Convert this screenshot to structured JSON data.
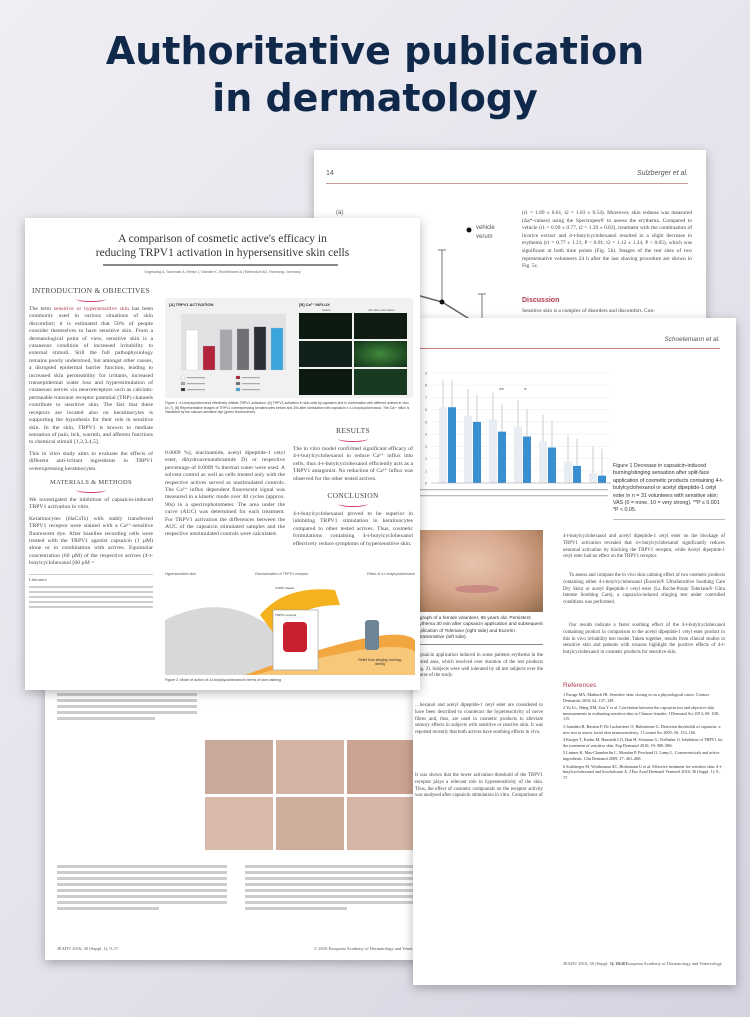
{
  "headline": {
    "line1": "Authoritative publication",
    "line2": "in dermatology"
  },
  "paper_sulzberger": {
    "page": "14",
    "running_head": "Sulzberger et al.",
    "panel": "(a)",
    "legend": [
      "vehicle",
      "verum"
    ],
    "body": "(t1 = 1.89 ± 0.61, t2 = 1.83 ± 0.54). Moreover, skin redness was measured (Δa*-values) using the Spectropen® to assess the erythema. Compared to vehicle (t1 = 0.99 ± 0.77, t2 = 1.39 ± 0.83), treatment with the combination of licorice extract and 4-t-butylcyclohexanol resulted in a slight decrease in erythema (t1 = 0.77 ± 1.21, P < 0.01; t2 = 1.12 ± 1.24, P < 0.05), which was significant at both time points (Fig. 5b). Images of the test sites of two representative volunteers 24 h after the last shaving procedure are shown in Fig. 5c.",
    "discussion_heading": "Discussion",
    "discussion": "Sensitive skin is a complex of disorders and discomfort. Con-"
  },
  "poster": {
    "title_line1": "A comparison of cosmetic active's efficacy in",
    "title_line2": "reducing TRPV1 activation in hypersensitive skin cells",
    "authors": "Vogelsang A, Sammain A, Weise J, Wamke K, Wohlfrimann A | Beiersdorf AG, Hamburg, Germany",
    "intro_heading": "INTRODUCTION & OBJECTIVES",
    "intro_lead": "The term ",
    "intro_highlight": "sensitive or hypersensitive skin",
    "intro_text": " has been commonly used in various situations of skin discomfort; it is estimated that 50% of people consider themselves to have sensitive skin. From a dermatological point of view, sensitive skin is a cutaneous condition of increased irritability to external stimuli. Still the full pathophysiology remains poorly understood, but amongst other causes, a disrupted epidermal barrier function, leading to increased skin permeability for irritants, increased transepidermal water loss and hyperstimulation of cutaneous nerves via neuroreceptors such as calcium-permeable transient receptor potential (TRP) channels contribute to sensitive skin. The fact that these receptors are located also on keratinocytes is supporting the hypothesis for their role in sensitive skin. In the skin, TRPV1 is known to mediate sensation of pain, itch, warmth, and afferent functions to chemical stimuli [1,2,3,4,5].",
    "aim": "This in vitro study aims to evaluate the effects of different anti-irritant ingredients in TRPV1 overexpressing keratinocytes.",
    "methods_heading": "MATERIALS & METHODS",
    "methods_1": "We investigated the inhibition of capsaicin-induced TRPV1 activation in vitro.",
    "methods_2": "Keratinocytes (HaCaTs) with stably transfected TRPV1 receptor were stained with a Ca²⁺-sensitive fluorescent dye. After baseline recording cells were treated with the TRPV1 agonist capsaicin (1 µM) alone or in combination with actives. Equimolar concentration (60 µM) of the respective actives (4-t-butylcyclohexanol [60 µM =",
    "methods_col2": "0.0009 %], niacinamide, acetyl dipeptide-1 cetyl ester, dihydroavenanthramide D) or respective percentage of 0.0009 % thermal water were used. A solvent control as well as cells treated only with the respective actives served as unstimulated controls. The Ca²⁺ influx dependent fluorescent signal was measured in a kinetic mode over 40 cycles (approx. 90s) in a spectrophotometer. The area under the curve (AUC) was determined for each treatment. For TRPV1 activation the differences between the AUC of the capsaicin stimulated samples and the respective unstimulated controls were calculated.",
    "results_heading": "RESULTS",
    "results": "The in vitro model confirmed significant efficacy of 4-t-butylcyclohexanol to reduce Ca²⁺ influx into cells, thus 4-t-butylcyclohexanol efficiently acts as a TRPV1 antagonist. No reduction of Ca²⁺ influx was observed for the other tested actives.",
    "conclusion_heading": "CONCLUSION",
    "conclusion": "4-t-butylcyclohexanol proved to be superior in inhibiting TRPV1 stimulation in keratinocytes compared to other tested actives. Thus, cosmetic formulations containing 4-t-butylcyclohexanol effectively reduce symptoms of hypersensitive skin.",
    "fig_a_title": "[A] TRPV1 ACTIVATION",
    "fig_b_title": "[B] Ca²⁺ INFLUX",
    "fig_b_cols": [
      "before",
      "20s after stimulation"
    ],
    "fig1_caption": "Figure 1: 4-t-butylcyclohexanol effectively inhibits TRPV1 activation. [A] TRPV1 activation in skin cells by capsaicin and in combination with different actives in vitro (n=7). [B] Representative images of TRPV1 overexpressing keratinocytes before and 20s after stimulation with capsaicin ± 4-t-butylcyclohexanol. The Ca²⁺ influx is visualized by the calcium-sensitive dye (green fluorescence).",
    "fig2_labels": [
      "Hypersensitive skin",
      "Overactivation of TRPV1 receptor",
      "Effect of 4-t-butylcyclohexanol"
    ],
    "fig2_annotations": [
      "CGRP release",
      "TRPV1 receptor",
      "Relief from stinging, burning, itching"
    ],
    "fig2_caption": "Figure 2: Mode of action of 4-t-butylcyclohexanol in terms of skin calming",
    "literature_heading": "Literature"
  },
  "chart_data": [
    {
      "type": "bar",
      "title": "[A] TRPV1 ACTIVATION",
      "ylim": [
        0,
        140
      ],
      "values": [
        100,
        60,
        101,
        103,
        108,
        105
      ],
      "colors": [
        "#ffffff",
        "#b0233a",
        "#a7a8ac",
        "#6e7075",
        "#2b2f38",
        "#3aa6dc"
      ]
    },
    {
      "type": "bar",
      "ylim": [
        0,
        9
      ],
      "yticks": [
        0,
        1,
        2,
        3,
        4,
        5,
        6,
        7,
        8,
        9
      ],
      "series": [
        {
          "values": [
            6.2,
            5.5,
            5.2,
            4.6,
            3.4,
            1.7,
            0.8
          ],
          "color": "#e8edf3"
        },
        {
          "values": [
            6.2,
            5.0,
            4.2,
            3.8,
            2.9,
            1.4,
            0.6
          ],
          "color": "#3a8fd0"
        }
      ],
      "significance": [
        "",
        "",
        "**",
        "*",
        "",
        "",
        ""
      ]
    }
  ],
  "paper_schoelemann": {
    "running_head": "Schoelemann et al.",
    "figure_caption": "Figure 1  Decrease in capsaicin-induced burning/stinging sensation after split-face application of cosmetic products containing 4-t-butylcyclohexanol or acetyl dipeptide-1 cetyl ester in n = 31 volunteers with sensitive skin; VAS (0 = none, 10 = very strong). **P ≤ 0.001 *P < 0.05.",
    "photo_caption": "…graph of a female volunteer, 65 years old. Persistent erythema 30 min after capsaicin application and subsequent application of Toleriane (right side) and Eucerin UltraSensitive (left side).",
    "left_text": "Capsaicin application induced in some patients erythema in the treated area, which resolved over duration of the test products (Fig. 2). Subjects were well tolerated by all test subjects over the course of the study.",
    "left_text2": "…hexanol and acetyl dipeptide-1 cetyl ester are considered to have been described to counteract the hyperreactivity of nerve fibres and, thus, are used in cosmetic products to alleviate sensory effects in subjects with sensitive or reactive skin. It was reported recently that both actives have soothing effects in vivo.",
    "left_text3": "It was shown that the lower activation threshold of the TRPV1 receptor plays a relevant role in hypersensitivity of the skin. Thus, the effect of cosmetic compounds on the receptor activity was analysed after capsaicin stimulation in vitro. Comparisons of",
    "right_text": "4-t-butylcyclohexanol and acetyl dipeptide-1 cetyl ester on the blockage of TRPV1 activation revealed that 4-t-butylcyclohexanol significantly reduces neuronal activation by blocking the TRPV1 receptor, while Acetyl dipeptide-1 cetyl ester had no effect on the TRPV1 receptor.",
    "right_text2": "To assess and compare the in vivo skin calming effect of two cosmetic products containing either 4-t-butylcyclohexanol (Eucerin® UltraSensitive Soothing Care Dry Skin) or acetyl dipeptide-1 cetyl ester (La Roche-Posay Toleriane® Ultra Intense Soothing Care), a capsaicin-induced stinging test under controlled conditions was performed.",
    "right_text3": "Our results indicate a faster soothing effect of the 4-t-butylcyclohexanol containing product in comparison to the acetyl dipeptide-1 cetyl ester product in this in vivo irritability test model. Taken together, results from clinical studies in sensitive skin and patients with rosacea highlight the positive effects of 4-t-butylcyclohexanol in cosmetic products for sensitive skin.",
    "references_heading": "References",
    "references": [
      "1  Farage MA, Maibach HI. Sensitive skin: closing in on a physiological cause. Contact Dermatitis 2010; 62: 137–149.",
      "2  Yu LL, Wang XM, Zou Y et al. Correlation between the capsaicin test and objective skin measurements in evaluating sensitive skin in Chinese females. J Dermatol Sci 2013; 69: 108–115.",
      "3  Jourdain R, Bastien P, De Lacharriere O, Rubinstenn G. Detection thresholds of capsaicin: a new test to assess facial skin neurosensitivity. J Cosmet Sci 2005; 56: 153–166.",
      "4  Kueper T, Krohn M, Haustedt LO, Hatt H, Schmaus G, Vielhaber G. Inhibition of TRPV1 for the treatment of sensitive skin. Exp Dermatol 2010; 19: 980–986.",
      "5  Lintner K, Mas-Chamberlin C, Mondon P, Peschard O, Lamy L. Cosmeceuticals and active ingredients. Clin Dermatol 2009; 27: 461–468.",
      "6  Sulzberger M, Worthmann AC, Holtzmann U et al. Effective treatment for sensitive skin: 4-t-butylcyclohexanol and licochalcone A. J Eur Acad Dermatol Venereol 2016; 30 (Suppl. 1): 9–17."
    ],
    "footer_left": "JEADV 2016, 30 (Suppl. 1), 18–20",
    "footer_right": "© 2016 European Academy of Dermatology and Venereology"
  },
  "paper_bottom": {
    "footer_left": "JEADV 2016, 30 (Suppl. 1), 9–17",
    "footer_right": "© 2016 European Academy of Dermatology and Venereology"
  }
}
